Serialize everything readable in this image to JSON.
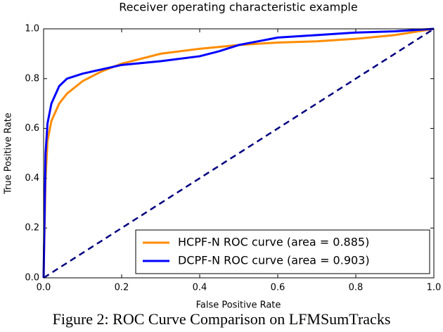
{
  "chart_data": {
    "type": "line",
    "title": "Receiver operating characteristic example",
    "x_label": "False Positive Rate",
    "y_label": "True Positive Rate",
    "xlim": [
      0,
      1
    ],
    "ylim": [
      0,
      1
    ],
    "xticks": [
      {
        "value": 0,
        "label": "0.0"
      },
      0.2,
      0.4,
      0.6,
      0.8,
      {
        "value": 1,
        "label": "1.0"
      }
    ],
    "yticks": [
      {
        "value": 0,
        "label": "0.0"
      },
      0.2,
      0.4,
      0.6,
      0.8,
      {
        "value": 1,
        "label": "1.0"
      }
    ],
    "grid": false,
    "legend": "lower right",
    "series": [
      {
        "name": "HCPF-N ROC curve (area = 0.885)",
        "color": "#ff8c00",
        "x": [
          0,
          0.005,
          0.01,
          0.02,
          0.04,
          0.06,
          0.1,
          0.15,
          0.2,
          0.3,
          0.4,
          0.5,
          0.6,
          0.7,
          0.8,
          0.9,
          1
        ],
        "values": [
          0,
          0.4,
          0.55,
          0.63,
          0.7,
          0.74,
          0.79,
          0.83,
          0.86,
          0.9,
          0.92,
          0.935,
          0.945,
          0.95,
          0.96,
          0.975,
          1
        ]
      },
      {
        "name": "DCPF-N ROC curve (area = 0.903)",
        "color": "#0000ff",
        "x": [
          0,
          0.005,
          0.01,
          0.02,
          0.04,
          0.06,
          0.1,
          0.2,
          0.3,
          0.4,
          0.45,
          0.5,
          0.55,
          0.6,
          0.7,
          0.8,
          0.9,
          1
        ],
        "values": [
          0,
          0.5,
          0.62,
          0.7,
          0.77,
          0.8,
          0.82,
          0.855,
          0.87,
          0.89,
          0.91,
          0.935,
          0.95,
          0.965,
          0.975,
          0.985,
          0.99,
          1
        ]
      }
    ],
    "reference_line": {
      "x": [
        0,
        1
      ],
      "values": [
        0,
        1
      ],
      "color": "#000080",
      "dashed": true
    }
  },
  "caption": "Figure 2: ROC Curve Comparison on LFMSumTracks"
}
